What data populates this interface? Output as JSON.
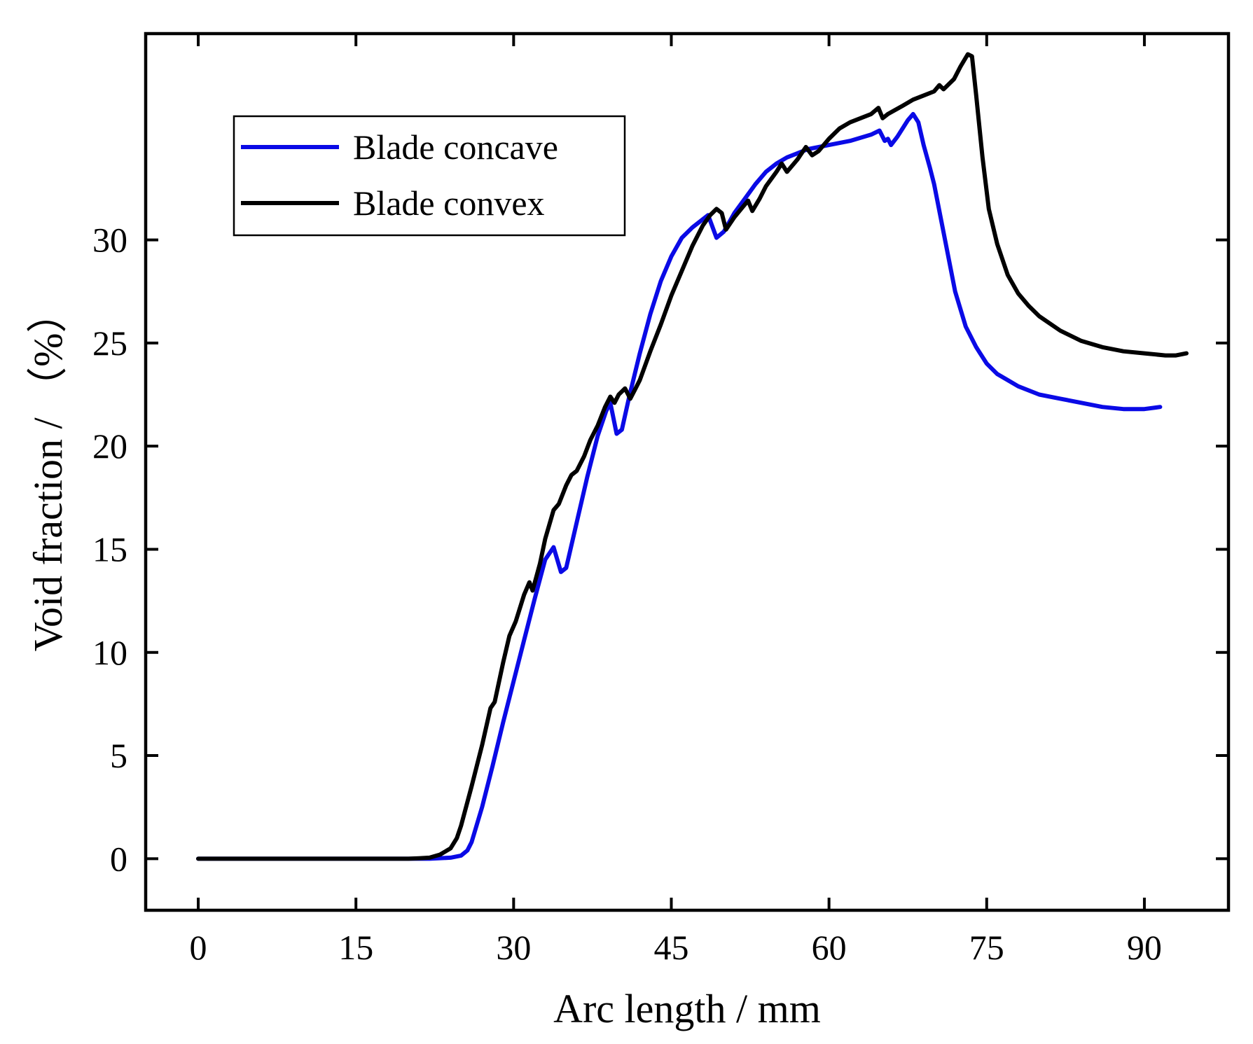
{
  "chart_data": {
    "type": "line",
    "xlabel": "Arc length / mm",
    "ylabel": "Void fraction / （%）",
    "xlim": [
      -5,
      98
    ],
    "ylim": [
      -2.5,
      40
    ],
    "xticks": [
      0,
      15,
      30,
      45,
      60,
      75,
      90
    ],
    "yticks": [
      0,
      5,
      10,
      15,
      20,
      25,
      30
    ],
    "grid": false,
    "legend_position": "top-left",
    "series": [
      {
        "name": "Blade concave",
        "color": "#0a0ae6",
        "points": [
          [
            0,
            0
          ],
          [
            20,
            0
          ],
          [
            22,
            0
          ],
          [
            24,
            0.05
          ],
          [
            25,
            0.15
          ],
          [
            25.6,
            0.4
          ],
          [
            26,
            0.8
          ],
          [
            27,
            2.5
          ],
          [
            28,
            4.5
          ],
          [
            29,
            6.6
          ],
          [
            30,
            8.6
          ],
          [
            31,
            10.6
          ],
          [
            32,
            12.6
          ],
          [
            33,
            14.5
          ],
          [
            33.8,
            15.1
          ],
          [
            34.5,
            13.9
          ],
          [
            35,
            14.1
          ],
          [
            36,
            16.3
          ],
          [
            37,
            18.5
          ],
          [
            38,
            20.5
          ],
          [
            38.8,
            21.7
          ],
          [
            39.2,
            22.1
          ],
          [
            39.8,
            20.6
          ],
          [
            40.3,
            20.8
          ],
          [
            41,
            22.4
          ],
          [
            42,
            24.5
          ],
          [
            43,
            26.4
          ],
          [
            44,
            28.0
          ],
          [
            45,
            29.2
          ],
          [
            46,
            30.1
          ],
          [
            47,
            30.6
          ],
          [
            48,
            31.0
          ],
          [
            48.5,
            31.2
          ],
          [
            49.3,
            30.1
          ],
          [
            50,
            30.4
          ],
          [
            51,
            31.3
          ],
          [
            52,
            32.0
          ],
          [
            53,
            32.7
          ],
          [
            54,
            33.3
          ],
          [
            55,
            33.7
          ],
          [
            56,
            34.0
          ],
          [
            57,
            34.2
          ],
          [
            58,
            34.4
          ],
          [
            60,
            34.6
          ],
          [
            62,
            34.8
          ],
          [
            64,
            35.1
          ],
          [
            64.8,
            35.3
          ],
          [
            65.3,
            34.8
          ],
          [
            65.6,
            34.9
          ],
          [
            65.9,
            34.6
          ],
          [
            66.5,
            35.0
          ],
          [
            67,
            35.4
          ],
          [
            67.5,
            35.8
          ],
          [
            68,
            36.1
          ],
          [
            68.5,
            35.7
          ],
          [
            69,
            34.6
          ],
          [
            69.6,
            33.5
          ],
          [
            70,
            32.7
          ],
          [
            71,
            30.1
          ],
          [
            72,
            27.5
          ],
          [
            73,
            25.8
          ],
          [
            74,
            24.8
          ],
          [
            75,
            24.0
          ],
          [
            76,
            23.5
          ],
          [
            77,
            23.2
          ],
          [
            78,
            22.9
          ],
          [
            80,
            22.5
          ],
          [
            82,
            22.3
          ],
          [
            84,
            22.1
          ],
          [
            86,
            21.9
          ],
          [
            88,
            21.8
          ],
          [
            90,
            21.8
          ],
          [
            91.5,
            21.9
          ]
        ]
      },
      {
        "name": "Blade convex",
        "color": "#000000",
        "points": [
          [
            0,
            0
          ],
          [
            20,
            0
          ],
          [
            21,
            0.02
          ],
          [
            22,
            0.05
          ],
          [
            23,
            0.2
          ],
          [
            24,
            0.5
          ],
          [
            24.6,
            1.0
          ],
          [
            25,
            1.6
          ],
          [
            26,
            3.5
          ],
          [
            27,
            5.5
          ],
          [
            27.8,
            7.3
          ],
          [
            28.2,
            7.6
          ],
          [
            29,
            9.5
          ],
          [
            29.6,
            10.8
          ],
          [
            30.2,
            11.5
          ],
          [
            31,
            12.8
          ],
          [
            31.5,
            13.4
          ],
          [
            31.8,
            13.0
          ],
          [
            32.5,
            14.3
          ],
          [
            33,
            15.5
          ],
          [
            33.8,
            16.9
          ],
          [
            34.3,
            17.2
          ],
          [
            35,
            18.1
          ],
          [
            35.5,
            18.6
          ],
          [
            36,
            18.8
          ],
          [
            36.7,
            19.5
          ],
          [
            37.3,
            20.3
          ],
          [
            38,
            21.0
          ],
          [
            38.7,
            21.9
          ],
          [
            39.2,
            22.4
          ],
          [
            39.6,
            22.1
          ],
          [
            40,
            22.5
          ],
          [
            40.6,
            22.8
          ],
          [
            41.1,
            22.3
          ],
          [
            41.5,
            22.7
          ],
          [
            42,
            23.2
          ],
          [
            43,
            24.6
          ],
          [
            44,
            25.9
          ],
          [
            45,
            27.3
          ],
          [
            46,
            28.5
          ],
          [
            47,
            29.7
          ],
          [
            48,
            30.7
          ],
          [
            48.7,
            31.2
          ],
          [
            49.3,
            31.5
          ],
          [
            49.8,
            31.3
          ],
          [
            50.2,
            30.5
          ],
          [
            51,
            31.1
          ],
          [
            51.8,
            31.6
          ],
          [
            52.3,
            31.9
          ],
          [
            52.7,
            31.4
          ],
          [
            53.4,
            32.0
          ],
          [
            54,
            32.6
          ],
          [
            55,
            33.3
          ],
          [
            55.5,
            33.7
          ],
          [
            56,
            33.3
          ],
          [
            57,
            33.9
          ],
          [
            57.8,
            34.5
          ],
          [
            58.4,
            34.1
          ],
          [
            59,
            34.3
          ],
          [
            60,
            34.9
          ],
          [
            61,
            35.4
          ],
          [
            62,
            35.7
          ],
          [
            63,
            35.9
          ],
          [
            64,
            36.1
          ],
          [
            64.7,
            36.4
          ],
          [
            65.1,
            35.9
          ],
          [
            65.6,
            36.1
          ],
          [
            67,
            36.5
          ],
          [
            68,
            36.8
          ],
          [
            69,
            37.0
          ],
          [
            70,
            37.2
          ],
          [
            70.5,
            37.5
          ],
          [
            70.9,
            37.3
          ],
          [
            71.3,
            37.5
          ],
          [
            71.9,
            37.8
          ],
          [
            72.5,
            38.4
          ],
          [
            73.2,
            39.0
          ],
          [
            73.6,
            38.9
          ],
          [
            74,
            37.0
          ],
          [
            74.6,
            34.0
          ],
          [
            75.2,
            31.5
          ],
          [
            76,
            29.8
          ],
          [
            77,
            28.3
          ],
          [
            78,
            27.4
          ],
          [
            79,
            26.8
          ],
          [
            80,
            26.3
          ],
          [
            82,
            25.6
          ],
          [
            84,
            25.1
          ],
          [
            86,
            24.8
          ],
          [
            88,
            24.6
          ],
          [
            90,
            24.5
          ],
          [
            92,
            24.4
          ],
          [
            93,
            24.4
          ],
          [
            94,
            24.5
          ]
        ]
      }
    ]
  }
}
